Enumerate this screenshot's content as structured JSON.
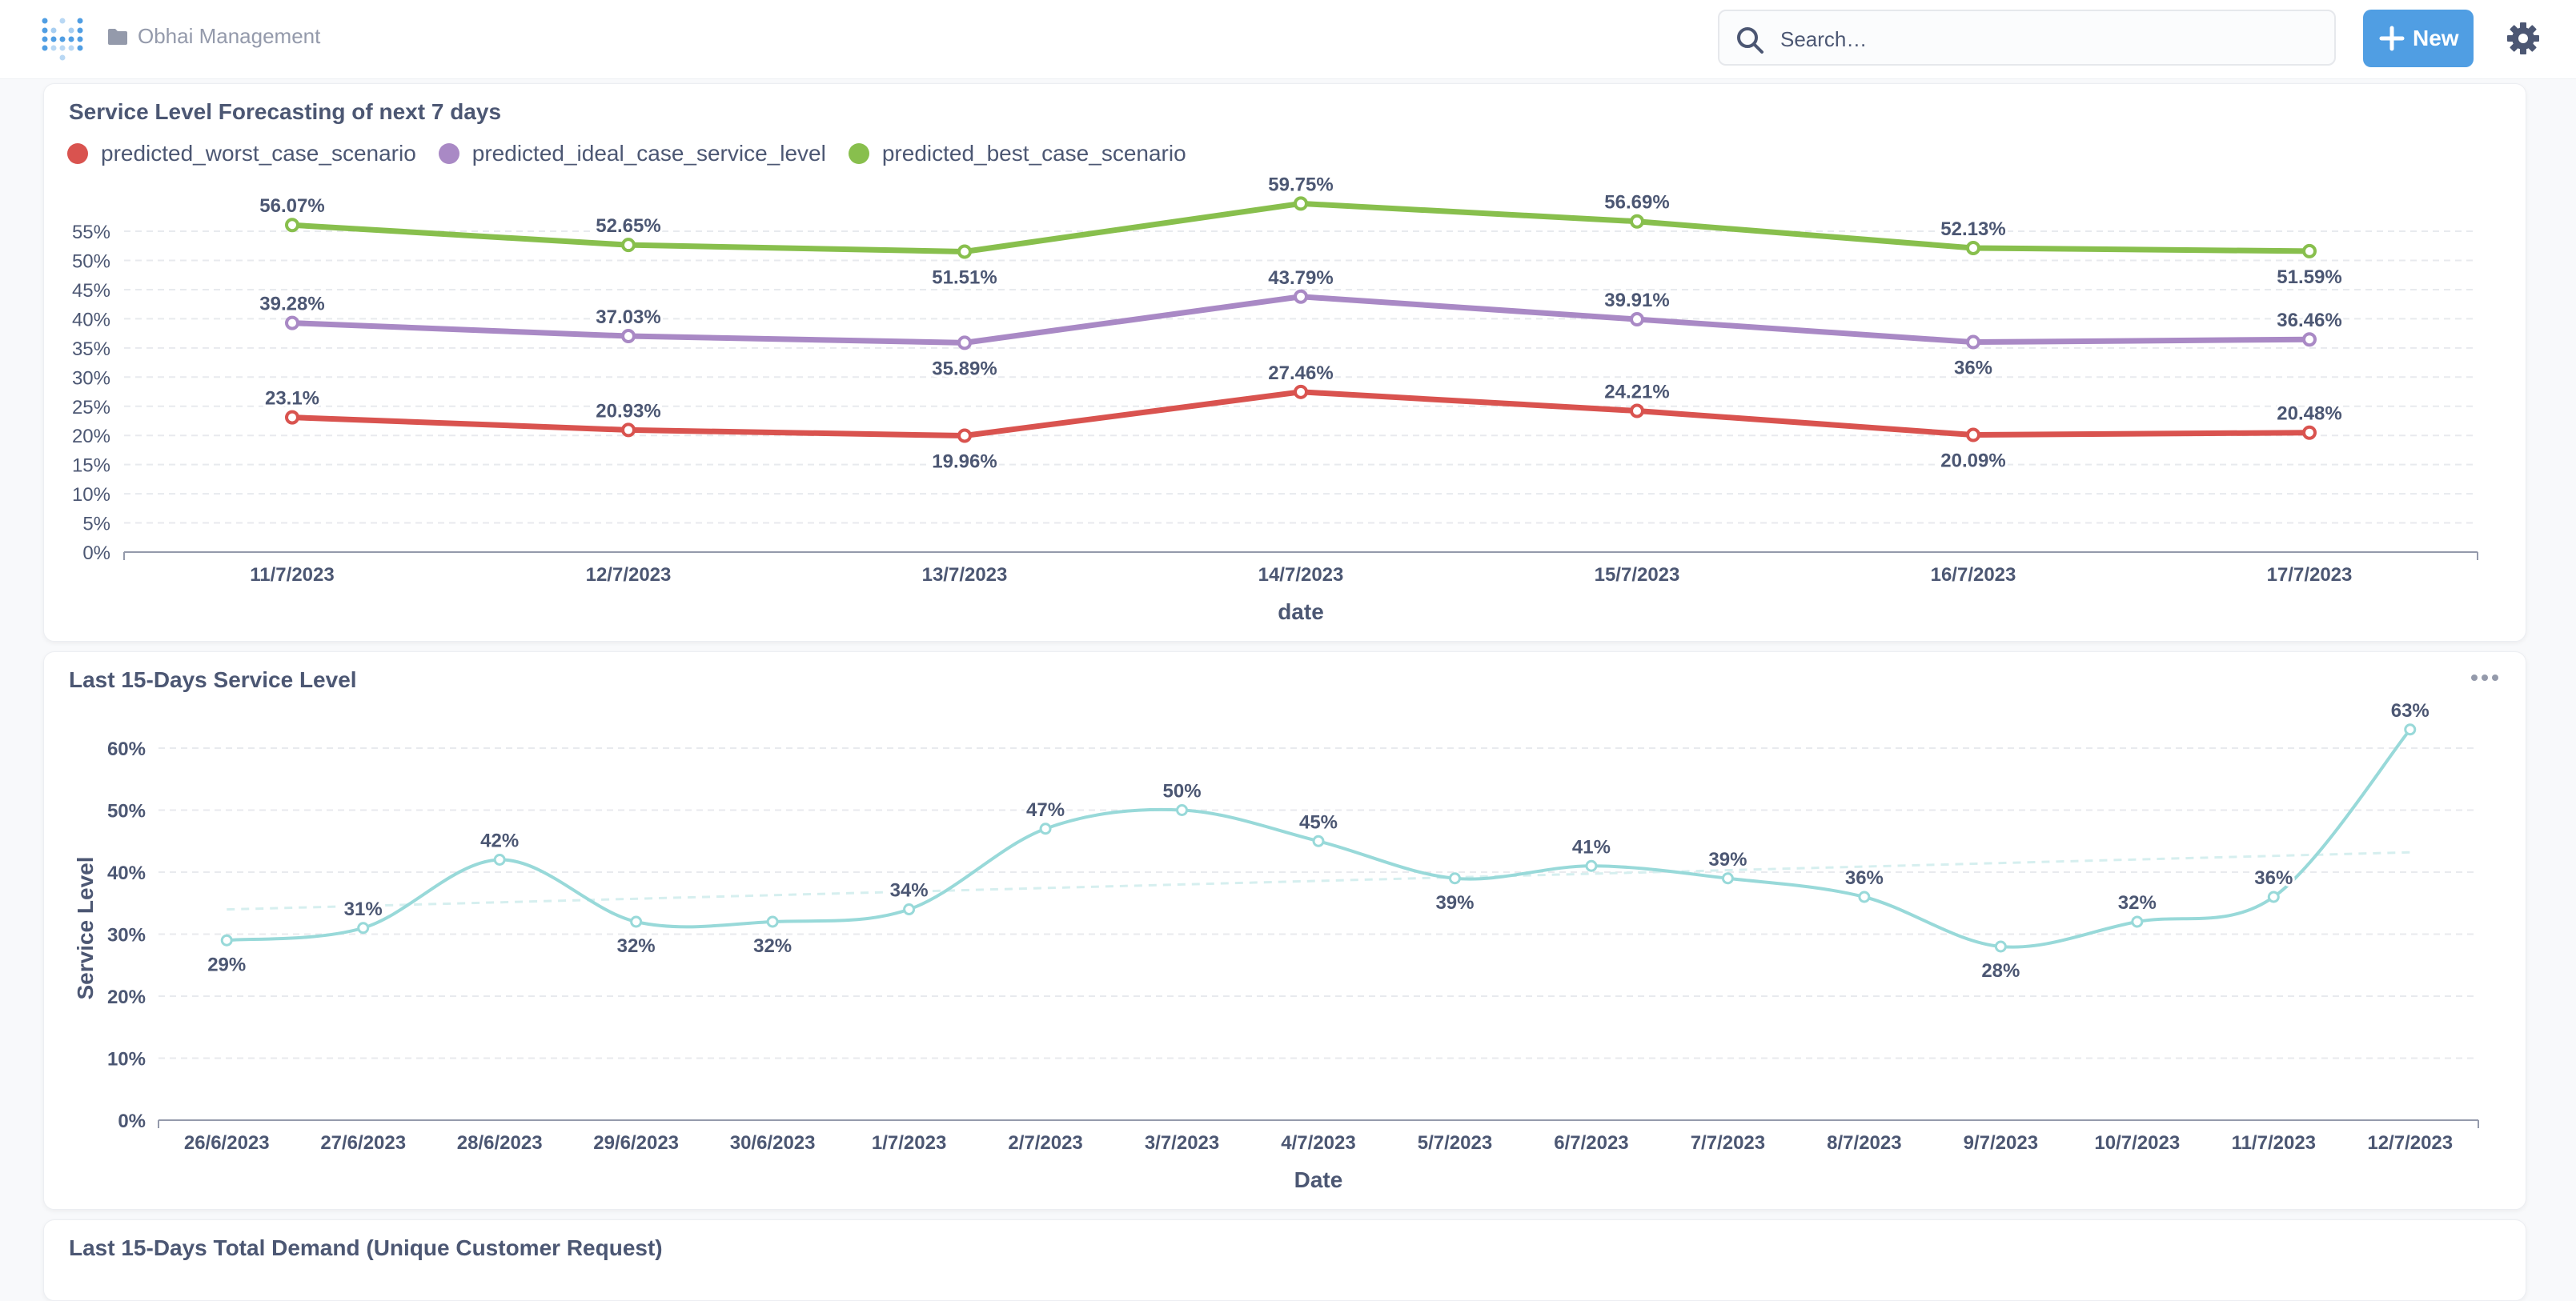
{
  "header": {
    "breadcrumb": "Obhai Management",
    "search_placeholder": "Search…",
    "new_label": "New"
  },
  "colors": {
    "accent": "#509ee3",
    "worst": "#d9534f",
    "ideal": "#a989c5",
    "best": "#88bf4d",
    "service": "#98d9d9"
  },
  "icons": [
    "metabase-logo-icon",
    "folder-icon",
    "search-icon",
    "plus-icon",
    "gear-icon",
    "more-icon"
  ],
  "forecast": {
    "title": "Service Level Forecasting of next 7 days",
    "legend": [
      "predicted_worst_case_scenario",
      "predicted_ideal_case_service_level",
      "predicted_best_case_scenario"
    ]
  },
  "history": {
    "title": "Last 15-Days Service Level"
  },
  "demand": {
    "title": "Last 15-Days Total Demand (Unique Customer Request)"
  },
  "chart_data": [
    {
      "type": "line",
      "title": "Service Level Forecasting of next 7 days",
      "xlabel": "date",
      "ylabel": "",
      "ylim": [
        0,
        55
      ],
      "yticks": [
        "0%",
        "5%",
        "10%",
        "15%",
        "20%",
        "25%",
        "30%",
        "35%",
        "40%",
        "45%",
        "50%",
        "55%"
      ],
      "categories": [
        "11/7/2023",
        "12/7/2023",
        "13/7/2023",
        "14/7/2023",
        "15/7/2023",
        "16/7/2023",
        "17/7/2023"
      ],
      "series": [
        {
          "name": "predicted_worst_case_scenario",
          "values": [
            23.1,
            20.93,
            19.96,
            27.46,
            24.21,
            20.09,
            20.48
          ],
          "labels": [
            "23.1%",
            "20.93%",
            "19.96%",
            "27.46%",
            "24.21%",
            "20.09%",
            "20.48%"
          ]
        },
        {
          "name": "predicted_ideal_case_service_level",
          "values": [
            39.28,
            37.03,
            35.89,
            43.79,
            39.91,
            36,
            36.46
          ],
          "labels": [
            "39.28%",
            "37.03%",
            "35.89%",
            "43.79%",
            "39.91%",
            "36%",
            "36.46%"
          ]
        },
        {
          "name": "predicted_best_case_scenario",
          "values": [
            56.07,
            52.65,
            51.51,
            59.75,
            56.69,
            52.13,
            51.59
          ],
          "labels": [
            "56.07%",
            "52.65%",
            "51.51%",
            "59.75%",
            "56.69%",
            "52.13%",
            "51.59%"
          ]
        }
      ],
      "grid": true,
      "legend": "top-left"
    },
    {
      "type": "line",
      "title": "Last 15-Days Service Level",
      "xlabel": "Date",
      "ylabel": "Service Level",
      "ylim": [
        0,
        60
      ],
      "yticks": [
        "0%",
        "10%",
        "20%",
        "30%",
        "40%",
        "50%",
        "60%"
      ],
      "categories": [
        "26/6/2023",
        "27/6/2023",
        "28/6/2023",
        "29/6/2023",
        "30/6/2023",
        "1/7/2023",
        "2/7/2023",
        "3/7/2023",
        "4/7/2023",
        "5/7/2023",
        "6/7/2023",
        "7/7/2023",
        "8/7/2023",
        "9/7/2023",
        "10/7/2023",
        "11/7/2023",
        "12/7/2023"
      ],
      "series": [
        {
          "name": "",
          "values": [
            29,
            31,
            42,
            32,
            32,
            34,
            47,
            50,
            45,
            39,
            41,
            39,
            36,
            28,
            32,
            36,
            63
          ],
          "labels": [
            "29%",
            "31%",
            "42%",
            "32%",
            "32%",
            "34%",
            "47%",
            "50%",
            "45%",
            "39%",
            "41%",
            "39%",
            "36%",
            "28%",
            "32%",
            "36%",
            "63%"
          ]
        }
      ],
      "trendline": true,
      "grid": true
    }
  ]
}
